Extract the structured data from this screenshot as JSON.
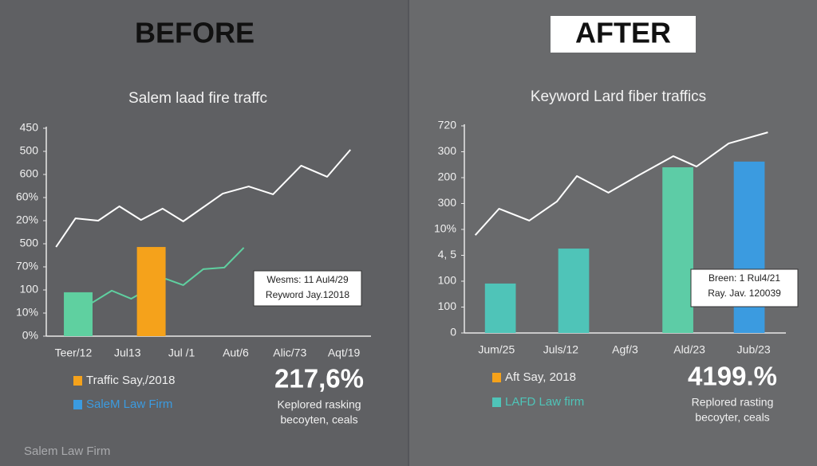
{
  "panels": [
    {
      "heading": "BEFORE"
    },
    {
      "heading": "AFTER"
    }
  ],
  "footer": "Salem Law Firm",
  "chart_data": [
    {
      "type": "combo",
      "title": "Salem laad fire traffc",
      "categories": [
        "Teer/12",
        "Jul13",
        "Jul /1",
        "Aut/6",
        "Alic/73",
        "Aqt/19"
      ],
      "ylim": [
        0,
        9
      ],
      "yticks": [
        {
          "value": 0,
          "label": "0%"
        },
        {
          "value": 1,
          "label": "10%"
        },
        {
          "value": 2,
          "label": "100"
        },
        {
          "value": 3,
          "label": "70%"
        },
        {
          "value": 4,
          "label": "500"
        },
        {
          "value": 5,
          "label": "20%"
        },
        {
          "value": 6,
          "label": "60%"
        },
        {
          "value": 7,
          "label": "600"
        },
        {
          "value": 8,
          "label": "500"
        },
        {
          "value": 9,
          "label": "450"
        }
      ],
      "series": [
        {
          "kind": "bar",
          "color": "#5fd0a0",
          "x": [
            0.09
          ],
          "values": [
            1.9
          ]
        },
        {
          "kind": "line",
          "color": "#5fd0a0",
          "x": [
            0.35,
            0.71,
            1.07,
            1.71,
            2.03,
            2.4,
            2.79,
            3.15
          ],
          "values": [
            1.45,
            1.97,
            1.62,
            2.48,
            2.21,
            2.9,
            2.97,
            3.83
          ]
        },
        {
          "kind": "bar",
          "color": "#f5a21b",
          "x": [
            1.44
          ],
          "values": [
            3.86
          ]
        },
        {
          "kind": "line",
          "color": "#ffffff",
          "x": [
            -0.32,
            0.04,
            0.46,
            0.85,
            1.25,
            1.65,
            2.03,
            2.76,
            3.24,
            3.69,
            4.21,
            4.69,
            5.12
          ],
          "values": [
            3.86,
            5.1,
            5.0,
            5.62,
            5.03,
            5.52,
            4.97,
            6.17,
            6.48,
            6.14,
            7.38,
            6.9,
            8.07
          ]
        }
      ],
      "annotation": [
        "Wesms: 11 Aul4/29",
        "Reyword Jay.12018"
      ],
      "legend": [
        {
          "label": "Traffic Say,/2018",
          "color": "#f5a21b"
        },
        {
          "label": "SaleM Law Firm",
          "color": "#3b9be0"
        }
      ],
      "stat": "217,6%",
      "stat_caption": [
        "Keplored rasking",
        "becoyten, ceals"
      ]
    },
    {
      "type": "combo",
      "title": "Keyword Lard fiber traffics",
      "categories": [
        "Jum/25",
        "Juls/12",
        "Agf/3",
        "Ald/23",
        "Jub/23"
      ],
      "ylim": [
        0,
        8
      ],
      "yticks": [
        {
          "value": 0,
          "label": "0"
        },
        {
          "value": 1,
          "label": "100"
        },
        {
          "value": 2,
          "label": "100"
        },
        {
          "value": 3,
          "label": "4, 5"
        },
        {
          "value": 4,
          "label": "10%"
        },
        {
          "value": 5,
          "label": "300"
        },
        {
          "value": 6,
          "label": "200"
        },
        {
          "value": 7,
          "label": "300"
        },
        {
          "value": 8,
          "label": "720"
        }
      ],
      "series": [
        {
          "kind": "bar",
          "color": "#4fc4b8",
          "x": [
            0.06,
            1.2
          ],
          "values": [
            1.91,
            3.26
          ]
        },
        {
          "kind": "bar",
          "color": "#5dcca6",
          "x": [
            2.82
          ],
          "values": [
            6.4
          ]
        },
        {
          "kind": "bar",
          "color": "#3b9be0",
          "x": [
            3.93
          ],
          "values": [
            6.62
          ]
        },
        {
          "kind": "line",
          "color": "#ffffff",
          "x": [
            -0.33,
            0.04,
            0.51,
            0.94,
            1.25,
            1.74,
            2.21,
            2.75,
            3.11,
            3.61,
            4.22
          ],
          "values": [
            3.78,
            4.8,
            4.34,
            5.08,
            6.06,
            5.42,
            6.09,
            6.83,
            6.43,
            7.32,
            7.75
          ]
        }
      ],
      "annotation": [
        "Breen: 1 Rul4/21",
        "Ray. Jav. 120039"
      ],
      "legend": [
        {
          "label": "Aft Say, 2018",
          "color": "#f5a21b"
        },
        {
          "label": "LAFD Law firm",
          "color": "#4fc4b8"
        }
      ],
      "stat": "4199.%",
      "stat_caption": [
        "Replored rasting",
        "becoyter, ceals"
      ]
    }
  ]
}
